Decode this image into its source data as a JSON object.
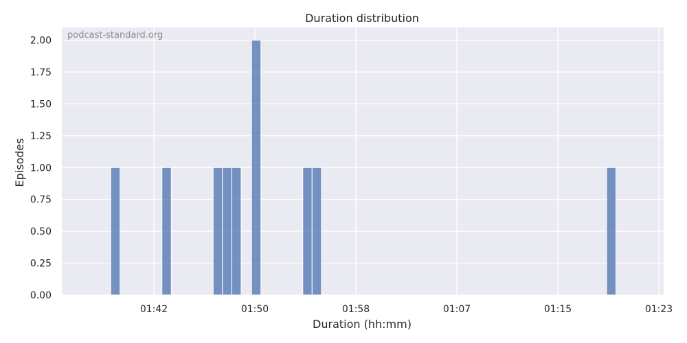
{
  "chart_data": {
    "type": "bar",
    "title": "Duration distribution",
    "xlabel": "Duration (hh:mm)",
    "ylabel": "Episodes",
    "watermark": "podcast-standard.org",
    "grid": true,
    "ylim": [
      0,
      2.1
    ],
    "x_ticks": [
      "01:42",
      "01:50",
      "01:58",
      "01:07",
      "01:15",
      "01:23"
    ],
    "y_ticks": [
      "0.00",
      "0.25",
      "0.50",
      "0.75",
      "1.00",
      "1.25",
      "1.50",
      "1.75",
      "2.00"
    ],
    "bins": [
      {
        "start": 95.5,
        "end": 96.3,
        "value": 1
      },
      {
        "start": 99.9,
        "end": 100.7,
        "value": 1
      },
      {
        "start": 104.3,
        "end": 105.1,
        "value": 1
      },
      {
        "start": 105.1,
        "end": 105.9,
        "value": 1
      },
      {
        "start": 105.9,
        "end": 106.7,
        "value": 1
      },
      {
        "start": 107.6,
        "end": 108.4,
        "value": 2
      },
      {
        "start": 112.0,
        "end": 112.8,
        "value": 1
      },
      {
        "start": 112.8,
        "end": 113.6,
        "value": 1
      },
      {
        "start": 138.1,
        "end": 138.9,
        "value": 1
      }
    ]
  },
  "colors": {
    "bar": "#4c72b0",
    "plot_background": "#eaeaf2",
    "grid": "#ffffff"
  }
}
